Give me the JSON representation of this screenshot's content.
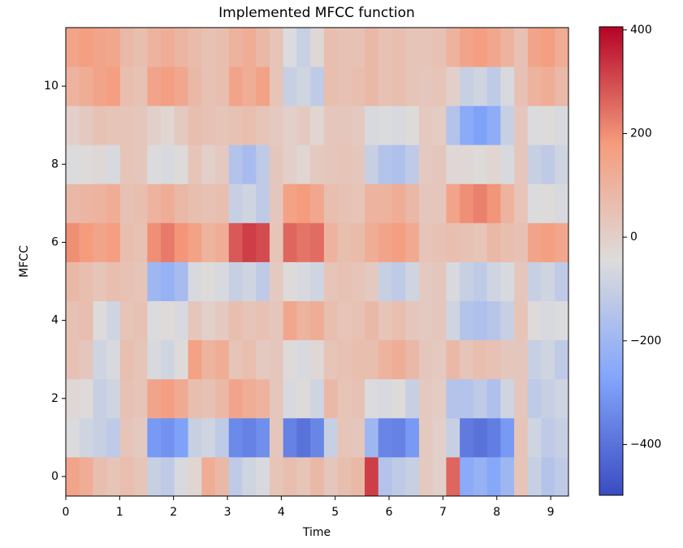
{
  "chart_data": {
    "type": "heatmap",
    "title": "Implemented MFCC function",
    "xlabel": "Time",
    "ylabel": "MFCC",
    "colormap": "coolwarm",
    "clim": [
      -498,
      406
    ],
    "xlim": [
      0,
      9.33
    ],
    "ylim": [
      -0.5,
      11.5
    ],
    "xticks": [
      0,
      1,
      2,
      3,
      4,
      5,
      6,
      7,
      8,
      9
    ],
    "yticks": [
      0,
      2,
      4,
      6,
      8,
      10
    ],
    "cticks": [
      {
        "value": -400,
        "label": "−400"
      },
      {
        "value": -200,
        "label": "−200"
      },
      0,
      200,
      400
    ],
    "z": [
      [
        150,
        120,
        60,
        40,
        60,
        40,
        -100,
        -120,
        -60,
        -20,
        120,
        80,
        -120,
        -80,
        -60,
        40,
        60,
        40,
        80,
        30,
        60,
        80,
        320,
        -150,
        -120,
        -100,
        20,
        0,
        260,
        -250,
        -220,
        -260,
        -200,
        40,
        -100,
        -150,
        -120
      ],
      [
        -50,
        -80,
        -100,
        -120,
        40,
        20,
        -300,
        -320,
        -280,
        -100,
        -80,
        -120,
        -340,
        -360,
        -330,
        30,
        -360,
        -400,
        -350,
        -100,
        40,
        30,
        -200,
        -350,
        -360,
        -300,
        20,
        0,
        -100,
        -380,
        -400,
        -370,
        -300,
        40,
        -80,
        -120,
        -100
      ],
      [
        -30,
        -40,
        -100,
        -80,
        50,
        40,
        150,
        170,
        130,
        60,
        50,
        80,
        150,
        120,
        100,
        30,
        -60,
        -40,
        -80,
        80,
        40,
        50,
        -50,
        -60,
        -40,
        -100,
        20,
        10,
        -150,
        -150,
        -120,
        -160,
        -80,
        30,
        -120,
        -100,
        -80
      ],
      [
        50,
        30,
        -80,
        -60,
        60,
        40,
        -60,
        -80,
        -40,
        160,
        100,
        120,
        40,
        60,
        20,
        30,
        -40,
        -60,
        -30,
        40,
        50,
        60,
        60,
        100,
        120,
        80,
        30,
        20,
        80,
        40,
        60,
        50,
        30,
        30,
        -100,
        -80,
        -120
      ],
      [
        50,
        60,
        -40,
        -80,
        40,
        50,
        -50,
        -40,
        -60,
        30,
        0,
        20,
        60,
        40,
        50,
        30,
        140,
        100,
        120,
        60,
        40,
        50,
        80,
        40,
        60,
        30,
        20,
        30,
        -80,
        -150,
        -160,
        -140,
        -100,
        40,
        -40,
        -60,
        -50
      ],
      [
        80,
        60,
        40,
        60,
        50,
        40,
        -200,
        -220,
        -180,
        -60,
        -40,
        -60,
        -100,
        -80,
        -120,
        20,
        -40,
        -60,
        -80,
        40,
        50,
        40,
        20,
        -100,
        -120,
        -80,
        20,
        30,
        -60,
        -100,
        -120,
        -80,
        -60,
        30,
        -100,
        -80,
        -120
      ],
      [
        200,
        180,
        150,
        170,
        60,
        50,
        200,
        230,
        190,
        160,
        100,
        120,
        280,
        320,
        300,
        40,
        260,
        240,
        250,
        100,
        60,
        70,
        120,
        150,
        170,
        130,
        40,
        50,
        60,
        50,
        40,
        80,
        60,
        50,
        150,
        170,
        140
      ],
      [
        80,
        90,
        100,
        120,
        50,
        60,
        100,
        120,
        80,
        60,
        50,
        60,
        -100,
        -80,
        -120,
        30,
        160,
        180,
        140,
        60,
        50,
        40,
        100,
        100,
        120,
        80,
        30,
        30,
        150,
        200,
        220,
        190,
        100,
        40,
        -50,
        -40,
        -60
      ],
      [
        -50,
        -40,
        -30,
        -60,
        40,
        30,
        -50,
        -60,
        -40,
        40,
        0,
        20,
        -150,
        -180,
        -120,
        30,
        0,
        -20,
        20,
        30,
        40,
        30,
        -100,
        -150,
        -160,
        -120,
        20,
        30,
        -30,
        -30,
        -40,
        -20,
        -60,
        30,
        -100,
        -120,
        -80
      ],
      [
        0,
        20,
        50,
        40,
        40,
        30,
        0,
        -20,
        20,
        60,
        50,
        40,
        50,
        60,
        40,
        20,
        0,
        20,
        -20,
        30,
        30,
        20,
        -60,
        -50,
        -60,
        -40,
        20,
        10,
        -150,
        -250,
        -280,
        -240,
        -100,
        30,
        -50,
        -40,
        -60
      ],
      [
        100,
        120,
        150,
        170,
        60,
        50,
        150,
        170,
        140,
        80,
        50,
        60,
        150,
        120,
        160,
        40,
        -100,
        -80,
        -120,
        60,
        50,
        60,
        80,
        50,
        60,
        40,
        30,
        40,
        0,
        -100,
        -80,
        -120,
        -60,
        50,
        100,
        120,
        80
      ],
      [
        150,
        170,
        150,
        140,
        80,
        60,
        100,
        120,
        90,
        70,
        50,
        60,
        100,
        120,
        80,
        40,
        -50,
        -100,
        -30,
        60,
        50,
        50,
        80,
        50,
        60,
        40,
        40,
        50,
        100,
        150,
        170,
        140,
        100,
        50,
        150,
        170,
        120
      ]
    ]
  }
}
